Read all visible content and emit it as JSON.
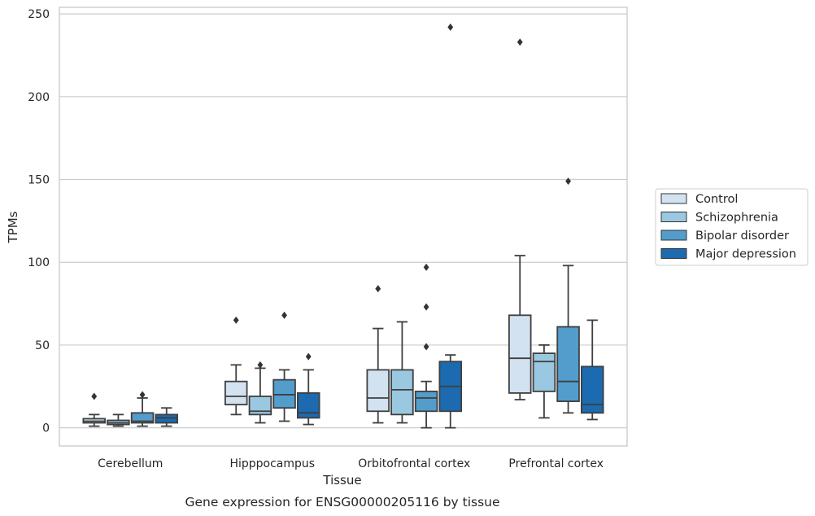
{
  "chart_data": {
    "type": "box",
    "xlabel": "Tissue",
    "ylabel": "TPMs",
    "caption": "Gene expression for ENSG00000205116 by tissue",
    "ylim": [
      -11,
      254
    ],
    "yticks": [
      0,
      50,
      100,
      150,
      200,
      250
    ],
    "grid": true,
    "legend_position": "right",
    "categories": [
      "Cerebellum",
      "Hipppocampus",
      "Orbitofrontal cortex",
      "Prefrontal cortex"
    ],
    "series": [
      {
        "name": "Control",
        "color": "#d2e2f1",
        "boxes": [
          {
            "whisker_low": 1,
            "q1": 3,
            "median": 4,
            "q3": 5.5,
            "whisker_high": 8,
            "outliers": [
              19
            ]
          },
          {
            "whisker_low": 8,
            "q1": 14,
            "median": 19,
            "q3": 28,
            "whisker_high": 38,
            "outliers": [
              65
            ]
          },
          {
            "whisker_low": 3,
            "q1": 10,
            "median": 18,
            "q3": 35,
            "whisker_high": 60,
            "outliers": [
              84
            ]
          },
          {
            "whisker_low": 17,
            "q1": 21,
            "median": 42,
            "q3": 68,
            "whisker_high": 104,
            "outliers": [
              233
            ]
          }
        ]
      },
      {
        "name": "Schizophrenia",
        "color": "#9ac8e0",
        "boxes": [
          {
            "whisker_low": 1,
            "q1": 2,
            "median": 3,
            "q3": 4.5,
            "whisker_high": 8,
            "outliers": []
          },
          {
            "whisker_low": 3,
            "q1": 8,
            "median": 10,
            "q3": 19,
            "whisker_high": 36,
            "outliers": [
              38
            ]
          },
          {
            "whisker_low": 3,
            "q1": 8,
            "median": 23,
            "q3": 35,
            "whisker_high": 64,
            "outliers": []
          },
          {
            "whisker_low": 6,
            "q1": 22,
            "median": 40,
            "q3": 45,
            "whisker_high": 50,
            "outliers": []
          }
        ]
      },
      {
        "name": "Bipolar disorder",
        "color": "#529dcc",
        "boxes": [
          {
            "whisker_low": 1,
            "q1": 3,
            "median": 4,
            "q3": 9,
            "whisker_high": 18,
            "outliers": [
              20
            ]
          },
          {
            "whisker_low": 4,
            "q1": 12,
            "median": 20,
            "q3": 29,
            "whisker_high": 35,
            "outliers": [
              68
            ]
          },
          {
            "whisker_low": 0,
            "q1": 10,
            "median": 18,
            "q3": 22,
            "whisker_high": 28,
            "outliers": [
              49,
              73,
              97
            ]
          },
          {
            "whisker_low": 9,
            "q1": 16,
            "median": 28,
            "q3": 61,
            "whisker_high": 98,
            "outliers": [
              149
            ]
          }
        ]
      },
      {
        "name": "Major depression",
        "color": "#1c6aaf",
        "boxes": [
          {
            "whisker_low": 1,
            "q1": 3,
            "median": 6,
            "q3": 8,
            "whisker_high": 12,
            "outliers": []
          },
          {
            "whisker_low": 2,
            "q1": 6,
            "median": 9,
            "q3": 21,
            "whisker_high": 35,
            "outliers": [
              43
            ]
          },
          {
            "whisker_low": 0,
            "q1": 10,
            "median": 25,
            "q3": 40,
            "whisker_high": 44,
            "outliers": [
              242
            ]
          },
          {
            "whisker_low": 5,
            "q1": 9,
            "median": 14,
            "q3": 37,
            "whisker_high": 65,
            "outliers": []
          }
        ]
      }
    ]
  }
}
